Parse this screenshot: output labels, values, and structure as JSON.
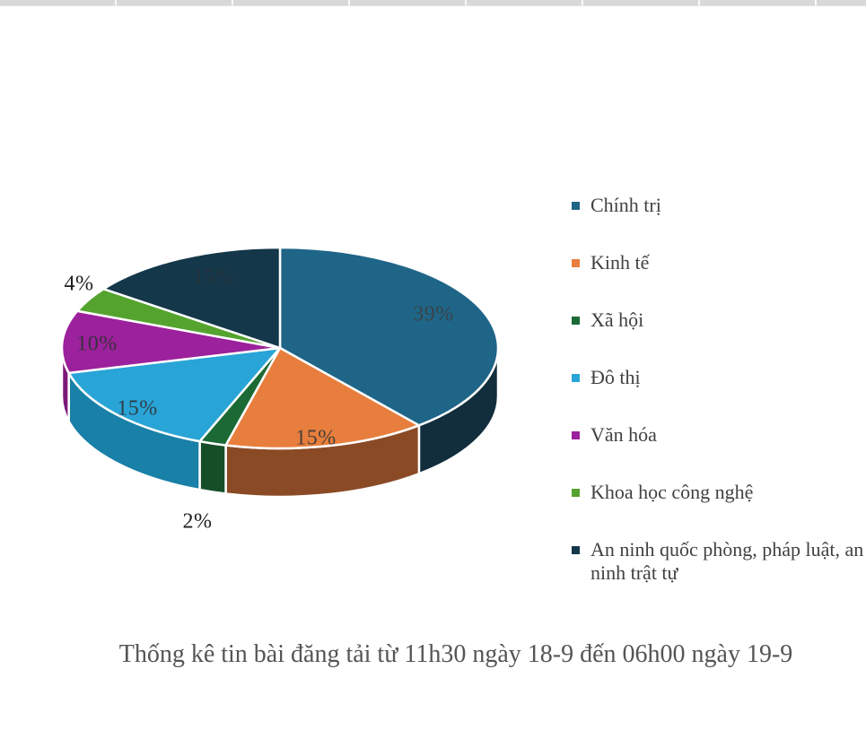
{
  "page": {
    "background": "#FFFFFF"
  },
  "chart_data": {
    "type": "pie",
    "style": "3d-pie",
    "title": "Thống kê tin bài đăng tải từ 11h30 ngày 18-9 đến 06h00 ngày 19-9",
    "legend_position": "right",
    "labels_format": "percent",
    "categories": [
      "Chính trị",
      "Kinh tế",
      "Xã hội",
      "Đô thị",
      "Văn hóa",
      "Khoa học công nghệ",
      "An ninh quốc phòng, pháp luật, an ninh trật tự"
    ],
    "values": [
      39,
      15,
      2,
      15,
      10,
      4,
      15
    ],
    "slices": [
      {
        "label": "Chính trị",
        "value": 39,
        "pct": "39%",
        "color": "#1F6587",
        "side_color": "#122E3D"
      },
      {
        "label": "Kinh tế",
        "value": 15,
        "pct": "15%",
        "color": "#E87E3D",
        "side_color": "#8B4A26"
      },
      {
        "label": "Xã hội",
        "value": 2,
        "pct": "2%",
        "color": "#1B6A35",
        "side_color": "#164E27"
      },
      {
        "label": "Đô thị",
        "value": 15,
        "pct": "15%",
        "color": "#29A4D7",
        "side_color": "#1980A8"
      },
      {
        "label": "Văn hóa",
        "value": 10,
        "pct": "10%",
        "color": "#9C219C",
        "side_color": "#7C187A"
      },
      {
        "label": "Khoa học công nghệ",
        "value": 4,
        "pct": "4%",
        "color": "#55A32F",
        "side_color": "#3F7A22"
      },
      {
        "label": "An ninh quốc phòng, pháp luật, an ninh trật tự",
        "value": 15,
        "pct": "15%",
        "color": "#14374A",
        "side_color": "#0D2531"
      }
    ],
    "label_text_color": "#404040",
    "legend_text_color": "#414141",
    "title_text_color": "#555555"
  }
}
